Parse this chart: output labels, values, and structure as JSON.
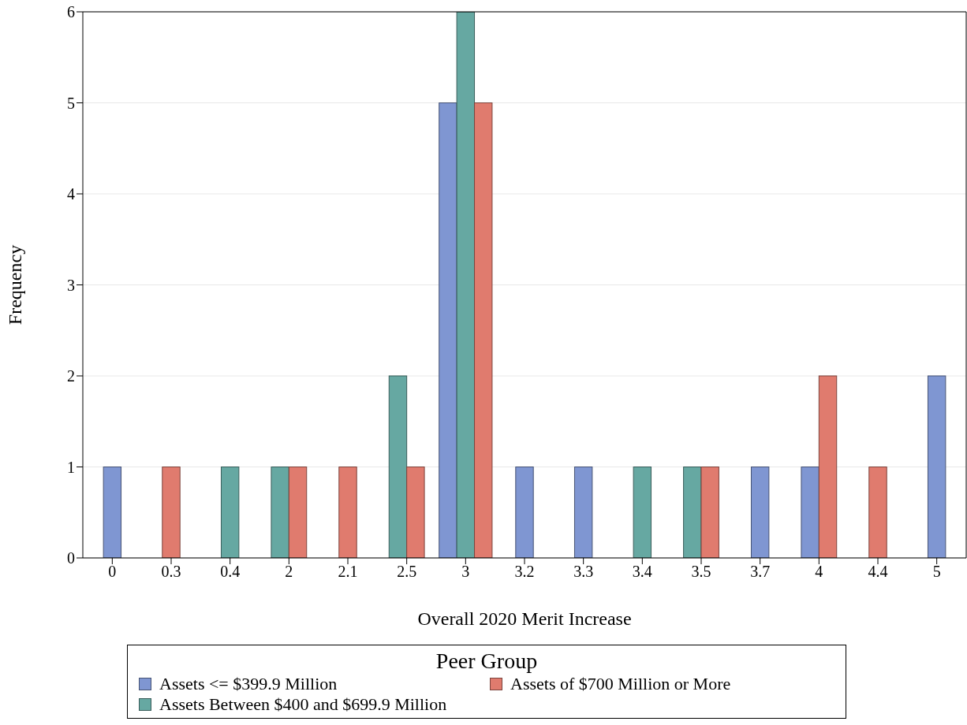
{
  "chart_data": {
    "type": "bar",
    "xlabel": "Overall 2020 Merit Increase",
    "ylabel": "Frequency",
    "legend_title": "Peer Group",
    "categories": [
      "0",
      "0.3",
      "0.4",
      "2",
      "2.1",
      "2.5",
      "3",
      "3.2",
      "3.3",
      "3.4",
      "3.5",
      "3.7",
      "4",
      "4.4",
      "5"
    ],
    "series": [
      {
        "name": "Assets <= $399.9 Million",
        "color": "#7f96d2",
        "values": [
          1,
          null,
          null,
          null,
          null,
          null,
          5,
          1,
          1,
          null,
          null,
          1,
          1,
          null,
          2
        ]
      },
      {
        "name": "Assets Between $400 and $699.9 Million",
        "color": "#66a8a2",
        "values": [
          null,
          null,
          1,
          1,
          null,
          2,
          6,
          null,
          null,
          1,
          1,
          null,
          null,
          null,
          null
        ]
      },
      {
        "name": "Assets of $700 Million or More",
        "color": "#e07b6e",
        "values": [
          null,
          1,
          null,
          1,
          1,
          1,
          5,
          null,
          null,
          null,
          1,
          null,
          2,
          1,
          null
        ]
      }
    ],
    "ylim": [
      0,
      6
    ],
    "yticks": [
      0,
      1,
      2,
      3,
      4,
      5,
      6
    ],
    "grid": "y",
    "legend": "bottom"
  }
}
